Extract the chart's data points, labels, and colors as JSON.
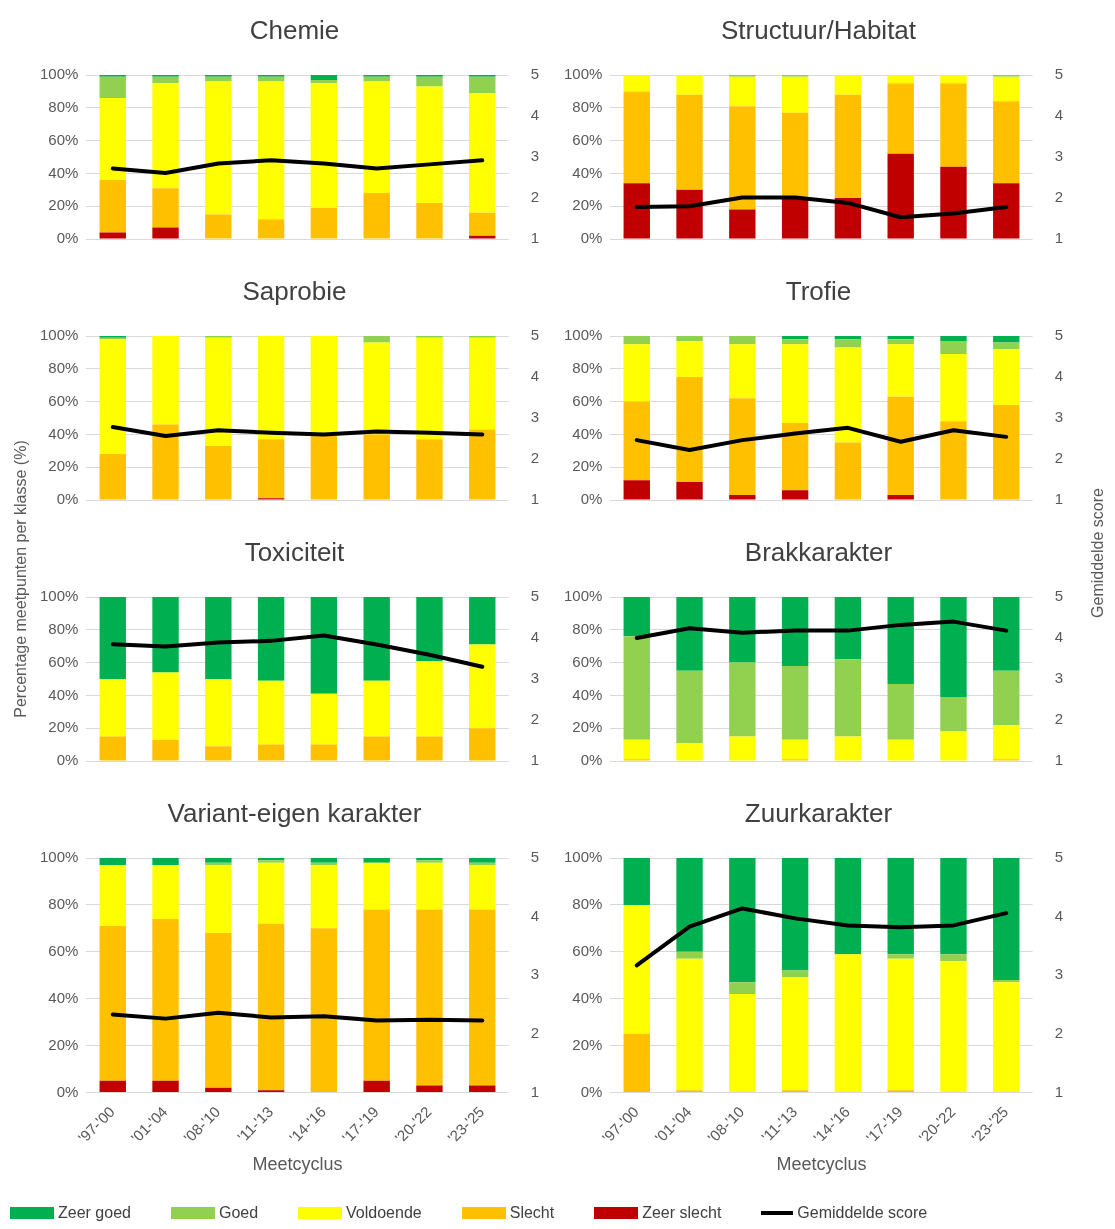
{
  "chart_data": [
    {
      "type": "bar",
      "title": "Chemie",
      "legend": "bottom",
      "stacked": true,
      "grid": "y",
      "tick_labels": "y",
      "marker": "none",
      "categories": [
        null,
        null,
        null,
        null,
        null,
        null,
        null,
        null
      ],
      "ylim": [
        0,
        100
      ],
      "yticks": [
        {
          "value": 0,
          "label": "0%"
        },
        {
          "value": 20,
          "label": "20%"
        },
        {
          "value": 40,
          "label": "40%"
        },
        {
          "value": 60,
          "label": "60%"
        },
        {
          "value": 80,
          "label": "80%"
        },
        {
          "value": 100,
          "label": "100%"
        }
      ],
      "y2lim": [
        1,
        5
      ],
      "y2ticks": [
        1,
        2,
        3,
        4,
        5
      ],
      "series": [
        {
          "name": "Zeer slecht",
          "color": "#c00000",
          "values": [
            4,
            7,
            0,
            0,
            0,
            0,
            0,
            2
          ]
        },
        {
          "name": "Slecht",
          "color": "#ffc000",
          "values": [
            32,
            24,
            15,
            12,
            19,
            28,
            22,
            14
          ]
        },
        {
          "name": "Voldoende",
          "color": "#ffff00",
          "values": [
            50,
            64,
            81,
            84,
            76,
            68,
            71,
            73
          ]
        },
        {
          "name": "Goed",
          "color": "#92d050",
          "values": [
            13,
            4,
            3,
            3,
            2,
            3,
            6,
            10
          ]
        },
        {
          "name": "Zeer goed",
          "color": "#00b050",
          "values": [
            1,
            1,
            1,
            1,
            3,
            1,
            1,
            1
          ]
        },
        {
          "name": "Gemiddelde score",
          "type": "line",
          "axis": "y2",
          "color": "#000000",
          "values": [
            2.72,
            2.61,
            2.84,
            2.92,
            2.84,
            2.72,
            2.82,
            2.92
          ]
        }
      ]
    },
    {
      "type": "bar",
      "title": "Structuur/Habitat",
      "stacked": true,
      "grid": "y",
      "tick_labels": "y",
      "marker": "none",
      "categories": [
        null,
        null,
        null,
        null,
        null,
        null,
        null,
        null
      ],
      "ylim": [
        0,
        100
      ],
      "yticks": [
        {
          "value": 0,
          "label": "0%"
        },
        {
          "value": 20,
          "label": "20%"
        },
        {
          "value": 40,
          "label": "40%"
        },
        {
          "value": 60,
          "label": "60%"
        },
        {
          "value": 80,
          "label": "80%"
        },
        {
          "value": 100,
          "label": "100%"
        }
      ],
      "y2lim": [
        1,
        5
      ],
      "y2ticks": [
        1,
        2,
        3,
        4,
        5
      ],
      "series": [
        {
          "color": "#c00000",
          "values": [
            34,
            30,
            18,
            25,
            25,
            52,
            44,
            34
          ]
        },
        {
          "color": "#ffc000",
          "values": [
            56,
            58,
            63,
            52,
            63,
            43,
            51,
            50
          ]
        },
        {
          "color": "#ffff00",
          "values": [
            10,
            12,
            18,
            22,
            12,
            5,
            5,
            15
          ]
        },
        {
          "color": "#92d050",
          "values": [
            0,
            0,
            1,
            1,
            0,
            0,
            0,
            1
          ]
        },
        {
          "color": "#00b050",
          "values": [
            0,
            0,
            0,
            0,
            0,
            0,
            0,
            0
          ]
        },
        {
          "type": "line",
          "axis": "y2",
          "color": "#000000",
          "values": [
            1.78,
            1.8,
            2.01,
            2.01,
            1.88,
            1.53,
            1.62,
            1.78
          ]
        }
      ]
    },
    {
      "type": "bar",
      "title": "Saprobie",
      "stacked": true,
      "grid": "y",
      "tick_labels": "y",
      "marker": "none",
      "categories": [
        null,
        null,
        null,
        null,
        null,
        null,
        null,
        null
      ],
      "ylim": [
        0,
        100
      ],
      "yticks": [
        {
          "value": 0,
          "label": "0%"
        },
        {
          "value": 20,
          "label": "20%"
        },
        {
          "value": 40,
          "label": "40%"
        },
        {
          "value": 60,
          "label": "60%"
        },
        {
          "value": 80,
          "label": "80%"
        },
        {
          "value": 100,
          "label": "100%"
        }
      ],
      "y2lim": [
        1,
        5
      ],
      "y2ticks": [
        1,
        2,
        3,
        4,
        5
      ],
      "series": [
        {
          "color": "#c00000",
          "values": [
            0,
            0,
            0,
            1,
            0,
            0,
            0,
            0
          ]
        },
        {
          "color": "#ffc000",
          "values": [
            28,
            46,
            33,
            36,
            39,
            40,
            37,
            43
          ]
        },
        {
          "color": "#ffff00",
          "values": [
            70,
            54,
            66,
            63,
            61,
            56,
            62,
            56
          ]
        },
        {
          "color": "#92d050",
          "values": [
            1,
            0,
            1,
            0,
            0,
            4,
            1,
            1
          ]
        },
        {
          "color": "#00b050",
          "values": [
            1,
            0,
            0,
            0,
            0,
            0,
            0,
            0
          ]
        },
        {
          "type": "line",
          "axis": "y2",
          "color": "#000000",
          "values": [
            2.78,
            2.56,
            2.7,
            2.64,
            2.6,
            2.67,
            2.64,
            2.6
          ]
        }
      ]
    },
    {
      "type": "bar",
      "title": "Trofie",
      "stacked": true,
      "grid": "y",
      "tick_labels": "y",
      "marker": "none",
      "categories": [
        null,
        null,
        null,
        null,
        null,
        null,
        null,
        null
      ],
      "ylim": [
        0,
        100
      ],
      "yticks": [
        {
          "value": 0,
          "label": "0%"
        },
        {
          "value": 20,
          "label": "20%"
        },
        {
          "value": 40,
          "label": "40%"
        },
        {
          "value": 60,
          "label": "60%"
        },
        {
          "value": 80,
          "label": "80%"
        },
        {
          "value": 100,
          "label": "100%"
        }
      ],
      "y2lim": [
        1,
        5
      ],
      "y2ticks": [
        1,
        2,
        3,
        4,
        5
      ],
      "series": [
        {
          "color": "#c00000",
          "values": [
            12,
            11,
            3,
            6,
            0,
            3,
            0,
            0
          ]
        },
        {
          "color": "#ffc000",
          "values": [
            48,
            64,
            59,
            41,
            35,
            60,
            48,
            58
          ]
        },
        {
          "color": "#ffff00",
          "values": [
            35,
            22,
            33,
            48,
            58,
            32,
            41,
            34
          ]
        },
        {
          "color": "#92d050",
          "values": [
            5,
            3,
            5,
            3,
            5,
            3,
            8,
            4
          ]
        },
        {
          "color": "#00b050",
          "values": [
            0,
            0,
            0,
            2,
            2,
            2,
            3,
            4
          ]
        },
        {
          "type": "line",
          "axis": "y2",
          "color": "#000000",
          "values": [
            2.46,
            2.22,
            2.46,
            2.62,
            2.76,
            2.42,
            2.7,
            2.54
          ]
        }
      ]
    },
    {
      "type": "bar",
      "title": "Toxiciteit",
      "ylabel": "Percentage meetpunten per klasse (%)",
      "stacked": true,
      "grid": "y",
      "tick_labels": "y",
      "marker": "none",
      "categories": [
        null,
        null,
        null,
        null,
        null,
        null,
        null,
        null
      ],
      "ylim": [
        0,
        100
      ],
      "yticks": [
        {
          "value": 0,
          "label": "0%"
        },
        {
          "value": 20,
          "label": "20%"
        },
        {
          "value": 40,
          "label": "40%"
        },
        {
          "value": 60,
          "label": "60%"
        },
        {
          "value": 80,
          "label": "80%"
        },
        {
          "value": 100,
          "label": "100%"
        }
      ],
      "y2lim": [
        1,
        5
      ],
      "y2ticks": [
        1,
        2,
        3,
        4,
        5
      ],
      "series": [
        {
          "color": "#c00000",
          "values": [
            0,
            0,
            0,
            0,
            0,
            0,
            0,
            0
          ]
        },
        {
          "color": "#ffc000",
          "values": [
            15,
            13,
            9,
            10,
            10,
            15,
            15,
            20
          ]
        },
        {
          "color": "#ffff00",
          "values": [
            35,
            41,
            41,
            39,
            31,
            34,
            46,
            51
          ]
        },
        {
          "color": "#92d050",
          "values": [
            0,
            0,
            0,
            0,
            0,
            0,
            0,
            0
          ]
        },
        {
          "color": "#00b050",
          "values": [
            50,
            46,
            50,
            51,
            59,
            51,
            39,
            29
          ]
        },
        {
          "type": "line",
          "axis": "y2",
          "color": "#000000",
          "values": [
            3.85,
            3.79,
            3.89,
            3.93,
            4.06,
            3.84,
            3.59,
            3.3
          ]
        }
      ]
    },
    {
      "type": "bar",
      "title": "Brakkarakter",
      "y2label": "Gemiddelde score",
      "stacked": true,
      "grid": "y",
      "tick_labels": "y",
      "marker": "none",
      "categories": [
        null,
        null,
        null,
        null,
        null,
        null,
        null,
        null
      ],
      "ylim": [
        0,
        100
      ],
      "yticks": [
        {
          "value": 0,
          "label": "0%"
        },
        {
          "value": 20,
          "label": "20%"
        },
        {
          "value": 40,
          "label": "40%"
        },
        {
          "value": 60,
          "label": "60%"
        },
        {
          "value": 80,
          "label": "80%"
        },
        {
          "value": 100,
          "label": "100%"
        }
      ],
      "y2lim": [
        1,
        5
      ],
      "y2ticks": [
        1,
        2,
        3,
        4,
        5
      ],
      "series": [
        {
          "color": "#c00000",
          "values": [
            0,
            0,
            0,
            0,
            0,
            0,
            0,
            0
          ]
        },
        {
          "color": "#ffc000",
          "values": [
            1,
            0,
            0,
            1,
            0,
            0,
            0,
            1
          ]
        },
        {
          "color": "#ffff00",
          "values": [
            12,
            11,
            15,
            12,
            15,
            13,
            18,
            21
          ]
        },
        {
          "color": "#92d050",
          "values": [
            63,
            44,
            45,
            45,
            47,
            34,
            21,
            33
          ]
        },
        {
          "color": "#00b050",
          "values": [
            24,
            45,
            40,
            42,
            38,
            53,
            61,
            45
          ]
        },
        {
          "type": "line",
          "axis": "y2",
          "color": "#000000",
          "values": [
            4.0,
            4.24,
            4.13,
            4.18,
            4.18,
            4.32,
            4.4,
            4.18
          ]
        }
      ]
    },
    {
      "type": "bar",
      "title": "Variant-eigen karakter",
      "xlabel": "Meetcyclus",
      "stacked": true,
      "grid": "y",
      "marker": "none",
      "categories": [
        "'97-'00",
        "'01-'04",
        "'08-'10",
        "'11-'13",
        "'14-'16",
        "'17-'19",
        "'20-'22",
        "'23-'25"
      ],
      "ylim": [
        0,
        100
      ],
      "yticks": [
        {
          "value": 0,
          "label": "0%"
        },
        {
          "value": 20,
          "label": "20%"
        },
        {
          "value": 40,
          "label": "40%"
        },
        {
          "value": 60,
          "label": "60%"
        },
        {
          "value": 80,
          "label": "80%"
        },
        {
          "value": 100,
          "label": "100%"
        }
      ],
      "y2lim": [
        1,
        5
      ],
      "y2ticks": [
        1,
        2,
        3,
        4,
        5
      ],
      "series": [
        {
          "color": "#c00000",
          "values": [
            5,
            5,
            2,
            1,
            0,
            5,
            3,
            3
          ]
        },
        {
          "color": "#ffc000",
          "values": [
            66,
            69,
            66,
            71,
            70,
            73,
            75,
            75
          ]
        },
        {
          "color": "#ffff00",
          "values": [
            26,
            23,
            29,
            26,
            27,
            20,
            20,
            19
          ]
        },
        {
          "color": "#92d050",
          "values": [
            0,
            0,
            1,
            1,
            1,
            0,
            1,
            1
          ]
        },
        {
          "color": "#00b050",
          "values": [
            3,
            3,
            2,
            1,
            2,
            2,
            1,
            2
          ]
        },
        {
          "type": "line",
          "axis": "y2",
          "color": "#000000",
          "values": [
            2.33,
            2.26,
            2.36,
            2.28,
            2.3,
            2.23,
            2.24,
            2.23
          ]
        }
      ]
    },
    {
      "type": "bar",
      "title": "Zuurkarakter",
      "xlabel": "Meetcyclus",
      "stacked": true,
      "grid": "y",
      "marker": "none",
      "categories": [
        "'97-'00",
        "'01-'04",
        "'08-'10",
        "'11-'13",
        "'14-'16",
        "'17-'19",
        "'20-'22",
        "'23-'25"
      ],
      "ylim": [
        0,
        100
      ],
      "yticks": [
        {
          "value": 0,
          "label": "0%"
        },
        {
          "value": 20,
          "label": "20%"
        },
        {
          "value": 40,
          "label": "40%"
        },
        {
          "value": 60,
          "label": "60%"
        },
        {
          "value": 80,
          "label": "80%"
        },
        {
          "value": 100,
          "label": "100%"
        }
      ],
      "y2lim": [
        1,
        5
      ],
      "y2ticks": [
        1,
        2,
        3,
        4,
        5
      ],
      "series": [
        {
          "color": "#c00000",
          "values": [
            0,
            0,
            0,
            0,
            0,
            0,
            0,
            0
          ]
        },
        {
          "color": "#ffc000",
          "values": [
            25,
            1,
            0,
            1,
            0,
            1,
            0,
            0
          ]
        },
        {
          "color": "#ffff00",
          "values": [
            55,
            56,
            42,
            48,
            59,
            56,
            56,
            47
          ]
        },
        {
          "color": "#92d050",
          "values": [
            0,
            3,
            5,
            3,
            0,
            2,
            3,
            1
          ]
        },
        {
          "color": "#00b050",
          "values": [
            20,
            40,
            53,
            48,
            41,
            41,
            41,
            52
          ]
        },
        {
          "type": "line",
          "axis": "y2",
          "color": "#000000",
          "values": [
            3.17,
            3.83,
            4.14,
            3.97,
            3.85,
            3.82,
            3.85,
            4.06
          ]
        }
      ]
    }
  ]
}
